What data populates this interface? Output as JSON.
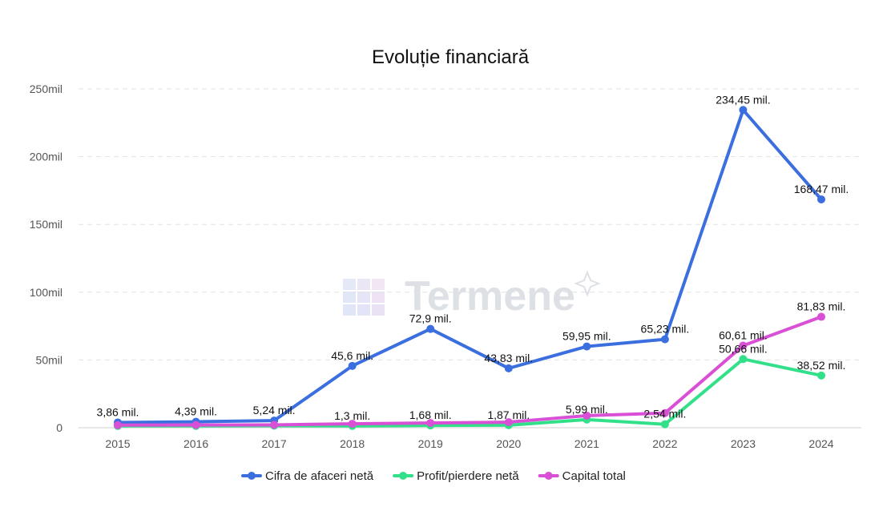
{
  "chart_data": {
    "type": "line",
    "title": "Evoluție financiară",
    "xlabel": "",
    "ylabel": "",
    "x": [
      "2015",
      "2016",
      "2017",
      "2018",
      "2019",
      "2020",
      "2021",
      "2022",
      "2023",
      "2024"
    ],
    "ylim": [
      0,
      250
    ],
    "yticks": [
      0,
      50,
      100,
      150,
      200,
      250
    ],
    "ytick_labels": [
      "0",
      "50mil",
      "100mil",
      "150mil",
      "200mil",
      "250mil"
    ],
    "grid": true,
    "legend_position": "bottom",
    "series": [
      {
        "name": "Cifra de afaceri netă",
        "color": "#3b6fe0",
        "values": [
          3.86,
          4.39,
          5.24,
          45.6,
          72.9,
          43.83,
          59.95,
          65.23,
          234.45,
          168.47
        ],
        "labels": [
          "3,86 mil.",
          "4,39 mil.",
          "5,24 mil.",
          "45,6 mil.",
          "72,9 mil.",
          "43,83 mil.",
          "59,95 mil.",
          "65,23 mil.",
          "234,45 mil.",
          "168,47 mil."
        ]
      },
      {
        "name": "Profit/pierdere netă",
        "color": "#33e08a",
        "values": [
          1.3,
          1.3,
          1.5,
          1.3,
          1.68,
          1.87,
          5.99,
          2.54,
          50.66,
          38.52
        ],
        "labels": [
          "",
          "",
          "",
          "1,3 mil.",
          "1,68 mil.",
          "1,87 mil.",
          "5,99 mil.",
          "2,54 mil.",
          "50,66 mil.",
          "38,52 mil."
        ]
      },
      {
        "name": "Capital total",
        "color": "#d94fd6",
        "values": [
          1.9,
          2.0,
          2.1,
          2.9,
          3.5,
          4.1,
          8.9,
          10.8,
          60.61,
          81.83
        ],
        "labels": [
          "",
          "",
          "",
          "",
          "",
          "",
          "",
          "",
          "60,61 mil.",
          "81,83 mil."
        ]
      }
    ]
  },
  "watermark": {
    "text": "Termene"
  }
}
